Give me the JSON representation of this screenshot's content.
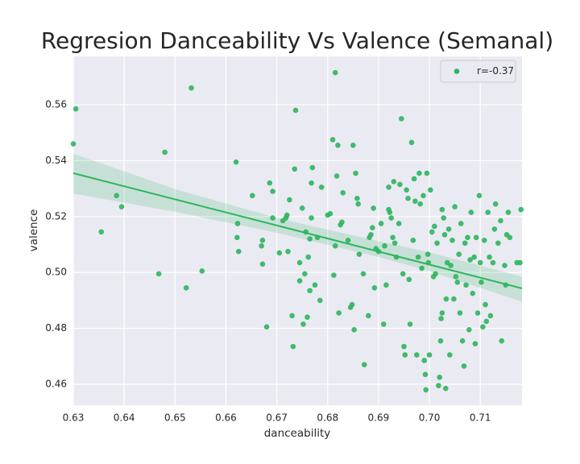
{
  "chart_data": {
    "type": "scatter",
    "title": "Regresion Danceability Vs Valence (Semanal)",
    "x_label": "danceability",
    "y_label": "valence",
    "xlim": [
      0.63,
      0.7182
    ],
    "ylim": [
      0.4525,
      0.5773
    ],
    "xticks": [
      0.63,
      0.64,
      0.65,
      0.66,
      0.67,
      0.68,
      0.69,
      {
        "value": 0.7,
        "label": "0.70"
      },
      0.71
    ],
    "yticks": [
      0.46,
      0.48,
      {
        "value": 0.5,
        "label": "0.50"
      },
      0.52,
      0.54,
      0.56
    ],
    "grid": true,
    "legend": "upper right",
    "fit": {
      "x": [
        0.63,
        0.7182
      ],
      "y": [
        0.5355,
        0.4943
      ]
    },
    "band": {
      "x": [
        0.63,
        0.65,
        0.67,
        0.69,
        0.7,
        0.7182
      ],
      "upper": [
        0.5425,
        0.5298,
        0.5195,
        0.5112,
        0.5072,
        0.4985
      ],
      "lower": [
        0.5282,
        0.5217,
        0.5142,
        0.5055,
        0.5005,
        0.4895
      ]
    },
    "series": [
      {
        "name": "r=-0.37",
        "color": "#2db55d",
        "x": [
          0.6305,
          0.63,
          0.6385,
          0.6395,
          0.6355,
          0.648,
          0.6532,
          0.6468,
          0.6522,
          0.6553,
          0.662,
          0.6623,
          0.6622,
          0.6625,
          0.6652,
          0.667,
          0.6672,
          0.6672,
          0.668,
          0.6686,
          0.6692,
          0.6692,
          0.6705,
          0.6712,
          0.6718,
          0.672,
          0.6722,
          0.6725,
          0.673,
          0.6732,
          0.6735,
          0.6737,
          0.6745,
          0.6745,
          0.675,
          0.6752,
          0.6755,
          0.6757,
          0.676,
          0.6762,
          0.6765,
          0.6765,
          0.6768,
          0.6768,
          0.677,
          0.6775,
          0.678,
          0.6785,
          0.6788,
          0.68,
          0.6805,
          0.681,
          0.6812,
          0.6815,
          0.6815,
          0.6818,
          0.682,
          0.6822,
          0.6825,
          0.6828,
          0.683,
          0.684,
          0.6845,
          0.6848,
          0.685,
          0.6852,
          0.6855,
          0.6858,
          0.686,
          0.6862,
          0.687,
          0.6872,
          0.688,
          0.6882,
          0.6885,
          0.6888,
          0.689,
          0.6892,
          0.6895,
          0.69,
          0.6905,
          0.691,
          0.6912,
          0.6915,
          0.692,
          0.692,
          0.6922,
          0.6925,
          0.6928,
          0.693,
          0.6932,
          0.6935,
          0.694,
          0.6942,
          0.6945,
          0.6948,
          0.695,
          0.6952,
          0.6955,
          0.6958,
          0.696,
          0.6962,
          0.6965,
          0.6968,
          0.697,
          0.6972,
          0.6975,
          0.6978,
          0.698,
          0.6982,
          0.6985,
          0.6988,
          0.699,
          0.6992,
          0.6993,
          0.6995,
          0.6997,
          0.6998,
          0.7,
          0.7002,
          0.7005,
          0.7008,
          0.701,
          0.7012,
          0.7015,
          0.7018,
          0.702,
          0.7022,
          0.7023,
          0.7025,
          0.7025,
          0.7028,
          0.703,
          0.7032,
          0.7033,
          0.7035,
          0.7038,
          0.704,
          0.7042,
          0.7045,
          0.7048,
          0.705,
          0.7052,
          0.7055,
          0.7058,
          0.706,
          0.7062,
          0.7065,
          0.7068,
          0.707,
          0.7072,
          0.7075,
          0.7078,
          0.708,
          0.7082,
          0.7085,
          0.7088,
          0.709,
          0.7092,
          0.7095,
          0.7098,
          0.71,
          0.7102,
          0.7105,
          0.7108,
          0.711,
          0.7112,
          0.7115,
          0.7118,
          0.712,
          0.7125,
          0.7128,
          0.713,
          0.7135,
          0.714,
          0.7142,
          0.7148,
          0.715,
          0.7152,
          0.7155,
          0.7158,
          0.7172,
          0.718,
          0.7178
        ],
        "values": [
          0.5585,
          0.546,
          0.5275,
          0.5235,
          0.5145,
          0.543,
          0.566,
          0.4995,
          0.4945,
          0.5005,
          0.5395,
          0.5175,
          0.5125,
          0.5075,
          0.5275,
          0.5095,
          0.5115,
          0.503,
          0.4805,
          0.532,
          0.529,
          0.5195,
          0.507,
          0.5185,
          0.5195,
          0.5205,
          0.5075,
          0.526,
          0.4845,
          0.4735,
          0.537,
          0.558,
          0.497,
          0.5035,
          0.523,
          0.4815,
          0.4995,
          0.5145,
          0.484,
          0.5055,
          0.4935,
          0.512,
          0.5195,
          0.532,
          0.5375,
          0.4955,
          0.5125,
          0.49,
          0.5305,
          0.5205,
          0.521,
          0.5475,
          0.499,
          0.5715,
          0.5095,
          0.5345,
          0.5455,
          0.4855,
          0.517,
          0.518,
          0.5285,
          0.5115,
          0.4875,
          0.4885,
          0.5455,
          0.4795,
          0.5355,
          0.5265,
          0.5245,
          0.5065,
          0.4995,
          0.467,
          0.4845,
          0.5125,
          0.5135,
          0.516,
          0.523,
          0.4945,
          0.5085,
          0.5075,
          0.5175,
          0.4815,
          0.5095,
          0.4955,
          0.5305,
          0.5225,
          0.5215,
          0.5195,
          0.5125,
          0.5325,
          0.5105,
          0.5055,
          0.5175,
          0.5315,
          0.555,
          0.4995,
          0.4735,
          0.4705,
          0.5295,
          0.5265,
          0.4975,
          0.4815,
          0.5465,
          0.5115,
          0.5335,
          0.5255,
          0.4705,
          0.5055,
          0.5355,
          0.5245,
          0.5015,
          0.5275,
          0.4685,
          0.4635,
          0.458,
          0.5355,
          0.5065,
          0.5035,
          0.4705,
          0.5295,
          0.5145,
          0.4985,
          0.5165,
          0.4995,
          0.5105,
          0.4595,
          0.4625,
          0.4755,
          0.4835,
          0.4855,
          0.5225,
          0.5195,
          0.5135,
          0.4585,
          0.4905,
          0.5035,
          0.5155,
          0.4705,
          0.5025,
          0.5115,
          0.4905,
          0.5235,
          0.4985,
          0.4965,
          0.5065,
          0.4855,
          0.5175,
          0.4755,
          0.4665,
          0.5105,
          0.4955,
          0.5125,
          0.4795,
          0.5045,
          0.5215,
          0.4925,
          0.5055,
          0.4745,
          0.5125,
          0.4855,
          0.5275,
          0.5035,
          0.4965,
          0.4805,
          0.5115,
          0.4885,
          0.4825,
          0.5215,
          0.5055,
          0.4845,
          0.5035,
          0.5155,
          0.5245,
          0.5105,
          0.5185,
          0.4755,
          0.5025,
          0.4955,
          0.5135,
          0.5215,
          0.5125,
          0.5035,
          0.5225,
          0.5035
        ]
      }
    ]
  }
}
